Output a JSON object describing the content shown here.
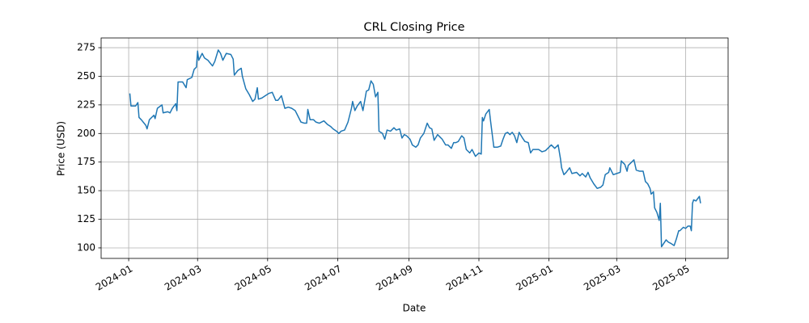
{
  "chart_data": {
    "type": "line",
    "title": "CRL Closing Price",
    "x_label": "Date",
    "y_label": "Price (USD)",
    "x": [
      1,
      2,
      6,
      8,
      9,
      11,
      15,
      16,
      18,
      22,
      23,
      25,
      29,
      30,
      34,
      36,
      38,
      41,
      42,
      43,
      47,
      50,
      51,
      55,
      57,
      59,
      60,
      61,
      64,
      66,
      69,
      73,
      75,
      78,
      80,
      82,
      85,
      89,
      91,
      92,
      95,
      98,
      99,
      102,
      105,
      108,
      110,
      112,
      113,
      116,
      119,
      122,
      125,
      128,
      130,
      133,
      136,
      139,
      142,
      145,
      147,
      150,
      153,
      155,
      156,
      158,
      161,
      163,
      166,
      170,
      173,
      176,
      178,
      181,
      183,
      185,
      188,
      191,
      194,
      195,
      197,
      199,
      202,
      204,
      207,
      209,
      211,
      213,
      215,
      217,
      218,
      221,
      223,
      225,
      228,
      231,
      233,
      236,
      238,
      240,
      242,
      245,
      247,
      250,
      252,
      254,
      257,
      260,
      262,
      264,
      266,
      269,
      271,
      273,
      276,
      278,
      281,
      283,
      285,
      287,
      290,
      292,
      294,
      297,
      299,
      302,
      305,
      307,
      308,
      309,
      311,
      314,
      315,
      318,
      321,
      324,
      326,
      328,
      330,
      332,
      334,
      336,
      338,
      340,
      343,
      345,
      348,
      350,
      352,
      355,
      357,
      360,
      363,
      366,
      368,
      371,
      374,
      376,
      377,
      379,
      381,
      384,
      386,
      390,
      393,
      395,
      398,
      400,
      402,
      405,
      408,
      411,
      413,
      415,
      418,
      419,
      422,
      425,
      428,
      429,
      432,
      434,
      435,
      438,
      440,
      442,
      445,
      448,
      450,
      452,
      454,
      455,
      457,
      458,
      460,
      462,
      463,
      464,
      466,
      468,
      470,
      472,
      475,
      477,
      479,
      480,
      483,
      485,
      487,
      489,
      490,
      491,
      492,
      494,
      497,
      498
    ],
    "values": [
      235,
      224,
      224,
      227,
      214,
      212,
      207,
      204,
      212,
      216,
      213,
      222,
      225,
      218,
      219,
      218,
      222,
      226,
      220,
      245,
      245,
      240,
      247,
      249,
      256,
      258,
      272,
      264,
      270,
      266,
      264,
      259,
      263,
      273,
      270,
      264,
      270,
      269,
      265,
      251,
      255,
      257,
      250,
      239,
      234,
      228,
      230,
      240,
      230,
      231,
      233,
      235,
      236,
      229,
      229,
      233,
      222,
      223,
      222,
      220,
      216,
      210,
      209,
      209,
      221,
      212,
      212,
      210,
      209,
      211,
      208,
      206,
      204,
      202,
      200,
      202,
      203,
      210,
      222,
      228,
      220,
      224,
      228,
      220,
      237,
      238,
      246,
      243,
      232,
      236,
      202,
      200,
      195,
      203,
      202,
      205,
      203,
      204,
      196,
      199,
      198,
      195,
      190,
      188,
      190,
      196,
      200,
      209,
      205,
      204,
      194,
      199,
      197,
      195,
      190,
      190,
      187,
      192,
      192,
      193,
      198,
      196,
      186,
      183,
      186,
      180,
      183,
      182,
      214,
      211,
      217,
      221,
      212,
      188,
      188,
      189,
      195,
      200,
      201,
      199,
      201,
      198,
      192,
      201,
      196,
      193,
      192,
      183,
      186,
      186,
      186,
      184,
      185,
      188,
      190,
      187,
      190,
      178,
      170,
      164,
      166,
      170,
      165,
      166,
      163,
      165,
      162,
      166,
      161,
      156,
      152,
      153,
      155,
      164,
      166,
      170,
      164,
      165,
      166,
      176,
      173,
      167,
      172,
      175,
      177,
      168,
      167,
      167,
      158,
      156,
      152,
      147,
      149,
      135,
      131,
      124,
      139,
      101,
      104,
      107,
      105,
      104,
      102,
      108,
      115,
      115,
      118,
      117,
      119,
      119,
      115,
      139,
      142,
      141,
      145,
      139
    ],
    "color": "#1f77b4",
    "xlim": [
      -24,
      522
    ],
    "xticks": [
      {
        "value": 0,
        "label": "2024-01"
      },
      {
        "value": 60,
        "label": "2024-03"
      },
      {
        "value": 121,
        "label": "2024-05"
      },
      {
        "value": 182,
        "label": "2024-07"
      },
      {
        "value": 244,
        "label": "2024-09"
      },
      {
        "value": 305,
        "label": "2024-11"
      },
      {
        "value": 366,
        "label": "2025-01"
      },
      {
        "value": 425,
        "label": "2025-03"
      },
      {
        "value": 485,
        "label": "2025-05"
      }
    ],
    "ylim": [
      90.8,
      283.5
    ],
    "yticks": [
      100,
      125,
      150,
      175,
      200,
      225,
      250,
      275
    ],
    "grid": true
  }
}
